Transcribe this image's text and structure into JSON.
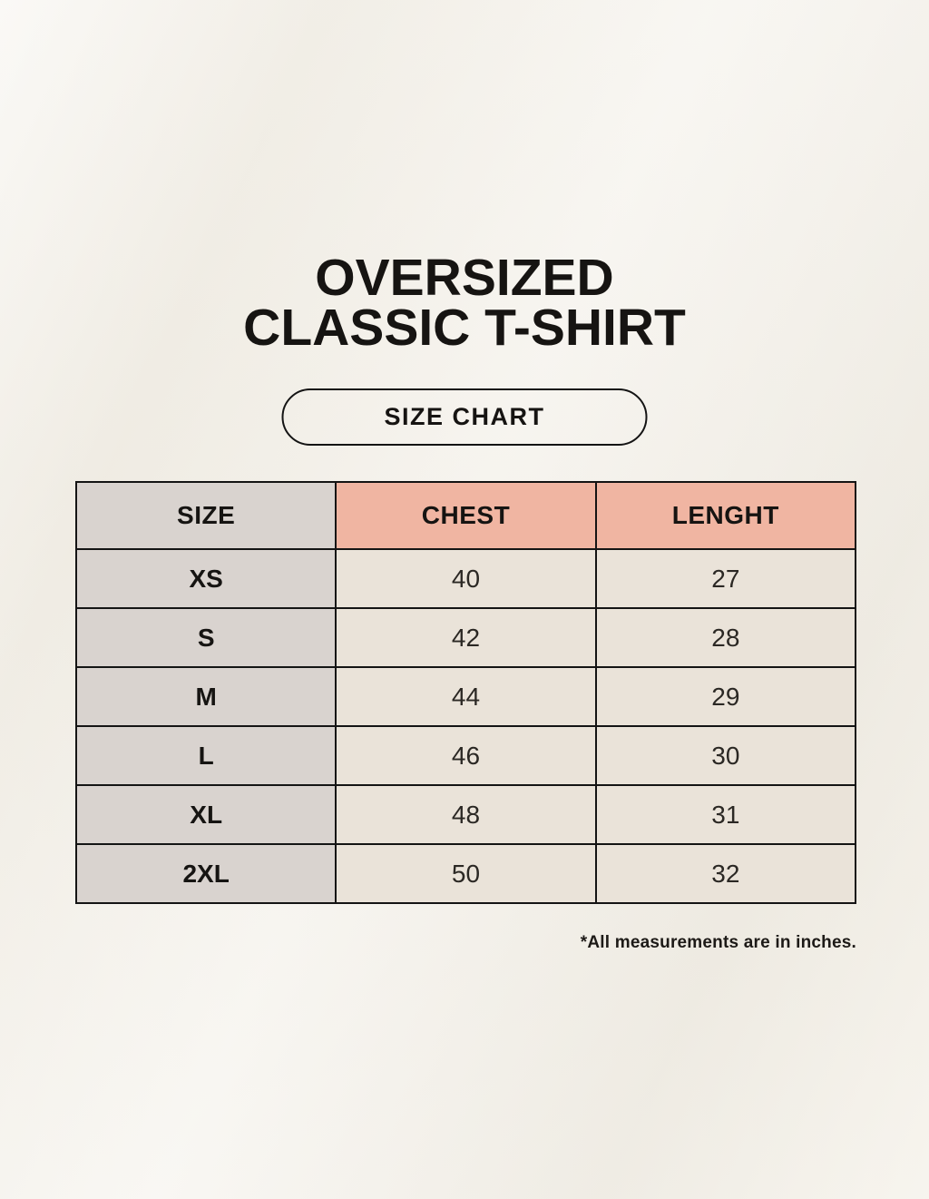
{
  "title": {
    "line1": "OVERSIZED",
    "line2": "CLASSIC T-SHIRT"
  },
  "button": {
    "label": "SIZE CHART"
  },
  "table": {
    "headers": [
      "SIZE",
      "CHEST",
      "LENGHT"
    ],
    "rows": [
      {
        "size": "XS",
        "chest": "40",
        "length": "27"
      },
      {
        "size": "S",
        "chest": "42",
        "length": "28"
      },
      {
        "size": "M",
        "chest": "44",
        "length": "29"
      },
      {
        "size": "L",
        "chest": "46",
        "length": "30"
      },
      {
        "size": "XL",
        "chest": "48",
        "length": "31"
      },
      {
        "size": "2XL",
        "chest": "50",
        "length": "32"
      }
    ]
  },
  "footnote": "*All measurements are in inches.",
  "colors": {
    "bg": "#f4f1ea",
    "headerPink": "#f0b5a2",
    "headerGray": "#d9d3cf",
    "cellCream": "#eae3d9",
    "border": "#141414",
    "text": "#161412"
  },
  "chart_data": {
    "type": "table",
    "title": "OVERSIZED CLASSIC T-SHIRT — SIZE CHART",
    "columns": [
      "SIZE",
      "CHEST",
      "LENGHT"
    ],
    "rows": [
      [
        "XS",
        40,
        27
      ],
      [
        "S",
        42,
        28
      ],
      [
        "M",
        44,
        29
      ],
      [
        "L",
        46,
        30
      ],
      [
        "XL",
        48,
        31
      ],
      [
        "2XL",
        50,
        32
      ]
    ],
    "note": "*All measurements are in inches.",
    "units": "inches"
  }
}
